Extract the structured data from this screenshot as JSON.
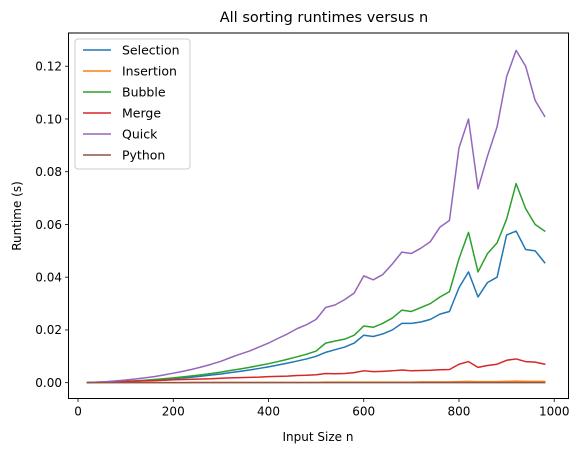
{
  "chart_data": {
    "type": "line",
    "title": "All sorting runtimes versus n",
    "xlabel": "Input Size n",
    "ylabel": "Runtime (s)",
    "xlim": [
      -20,
      1030
    ],
    "ylim": [
      -0.006,
      0.1326
    ],
    "xticks": [
      0,
      200,
      400,
      600,
      800,
      1000
    ],
    "yticks": [
      0.0,
      0.02,
      0.04,
      0.06,
      0.08,
      0.1,
      0.12
    ],
    "ytick_labels": [
      "0.00",
      "0.02",
      "0.04",
      "0.06",
      "0.08",
      "0.10",
      "0.12"
    ],
    "legend_position": "top-left",
    "grid": false,
    "x": [
      20,
      40,
      60,
      80,
      100,
      120,
      140,
      160,
      180,
      200,
      220,
      240,
      260,
      280,
      300,
      320,
      340,
      360,
      380,
      400,
      420,
      440,
      460,
      480,
      500,
      520,
      540,
      560,
      580,
      600,
      620,
      640,
      660,
      680,
      700,
      720,
      740,
      760,
      780,
      800,
      820,
      840,
      860,
      880,
      900,
      920,
      940,
      960,
      980
    ],
    "series": [
      {
        "name": "Selection",
        "color": "#1f77b4",
        "values": [
          0.0,
          0.0001,
          0.0002,
          0.0003,
          0.0004,
          0.0006,
          0.0008,
          0.001,
          0.0012,
          0.0015,
          0.0018,
          0.0021,
          0.0025,
          0.0029,
          0.0033,
          0.0038,
          0.0043,
          0.0048,
          0.0054,
          0.006,
          0.0067,
          0.0074,
          0.0082,
          0.009,
          0.01,
          0.0115,
          0.0125,
          0.0135,
          0.015,
          0.018,
          0.0175,
          0.0185,
          0.02,
          0.0225,
          0.0225,
          0.023,
          0.024,
          0.026,
          0.027,
          0.036,
          0.042,
          0.0325,
          0.038,
          0.04,
          0.056,
          0.0575,
          0.0505,
          0.05,
          0.0455
        ]
      },
      {
        "name": "Insertion",
        "color": "#ff7f0e",
        "values": [
          0.0,
          0.0,
          0.0,
          0.0,
          0.0,
          0.0,
          0.0,
          0.0,
          0.0,
          0.0,
          0.0,
          0.0001,
          0.0001,
          0.0001,
          0.0001,
          0.0001,
          0.0001,
          0.0001,
          0.0001,
          0.0001,
          0.0001,
          0.0001,
          0.0001,
          0.0001,
          0.0001,
          0.0002,
          0.0002,
          0.0002,
          0.0002,
          0.0002,
          0.0002,
          0.0002,
          0.0002,
          0.0002,
          0.0002,
          0.0003,
          0.0003,
          0.0003,
          0.0003,
          0.0004,
          0.0005,
          0.0004,
          0.0004,
          0.0004,
          0.0005,
          0.0006,
          0.0005,
          0.0005,
          0.0005
        ]
      },
      {
        "name": "Bubble",
        "color": "#2ca02c",
        "values": [
          0.0,
          0.0001,
          0.0002,
          0.0003,
          0.0005,
          0.0007,
          0.0009,
          0.0012,
          0.0015,
          0.0018,
          0.0022,
          0.0026,
          0.003,
          0.0035,
          0.004,
          0.0046,
          0.0052,
          0.0058,
          0.0065,
          0.0072,
          0.008,
          0.0089,
          0.0098,
          0.0108,
          0.012,
          0.015,
          0.0158,
          0.0165,
          0.018,
          0.0215,
          0.021,
          0.0225,
          0.0245,
          0.0275,
          0.027,
          0.0285,
          0.03,
          0.0325,
          0.0345,
          0.047,
          0.057,
          0.042,
          0.049,
          0.053,
          0.062,
          0.0755,
          0.066,
          0.06,
          0.0575
        ]
      },
      {
        "name": "Merge",
        "color": "#d62728",
        "values": [
          0.0001,
          0.0002,
          0.0003,
          0.0004,
          0.0005,
          0.0006,
          0.0007,
          0.0008,
          0.0009,
          0.0011,
          0.0012,
          0.0013,
          0.0014,
          0.0015,
          0.0017,
          0.0018,
          0.0019,
          0.002,
          0.0021,
          0.0023,
          0.0024,
          0.0025,
          0.0027,
          0.0028,
          0.003,
          0.0035,
          0.0034,
          0.0035,
          0.0038,
          0.0045,
          0.0042,
          0.0043,
          0.0045,
          0.0048,
          0.0045,
          0.0046,
          0.0047,
          0.0049,
          0.005,
          0.007,
          0.008,
          0.0058,
          0.0065,
          0.007,
          0.0085,
          0.009,
          0.008,
          0.0078,
          0.007
        ]
      },
      {
        "name": "Quick",
        "color": "#9467bd",
        "values": [
          0.0001,
          0.0002,
          0.0004,
          0.0007,
          0.001,
          0.0014,
          0.0018,
          0.0023,
          0.0029,
          0.0036,
          0.0043,
          0.0051,
          0.006,
          0.007,
          0.0081,
          0.0095,
          0.0108,
          0.012,
          0.0135,
          0.015,
          0.0168,
          0.0185,
          0.0205,
          0.022,
          0.024,
          0.0285,
          0.0295,
          0.0315,
          0.034,
          0.0405,
          0.039,
          0.041,
          0.045,
          0.0495,
          0.049,
          0.051,
          0.0535,
          0.059,
          0.0615,
          0.089,
          0.1,
          0.0735,
          0.086,
          0.097,
          0.116,
          0.126,
          0.12,
          0.107,
          0.101
        ]
      },
      {
        "name": "Python",
        "color": "#8c564b",
        "values": [
          0.0,
          0.0,
          0.0,
          0.0,
          0.0,
          0.0,
          0.0,
          0.0,
          0.0,
          0.0,
          0.0,
          0.0,
          0.0,
          0.0,
          0.0,
          0.0,
          0.0,
          0.0,
          0.0,
          0.0,
          0.0,
          0.0,
          0.0,
          0.0,
          0.0,
          0.0,
          0.0,
          0.0,
          0.0,
          0.0,
          0.0,
          0.0,
          0.0,
          0.0,
          0.0,
          0.0,
          0.0,
          0.0,
          0.0,
          0.0,
          0.0,
          0.0,
          0.0,
          0.0,
          0.0,
          0.0,
          0.0,
          0.0,
          0.0
        ]
      }
    ]
  }
}
